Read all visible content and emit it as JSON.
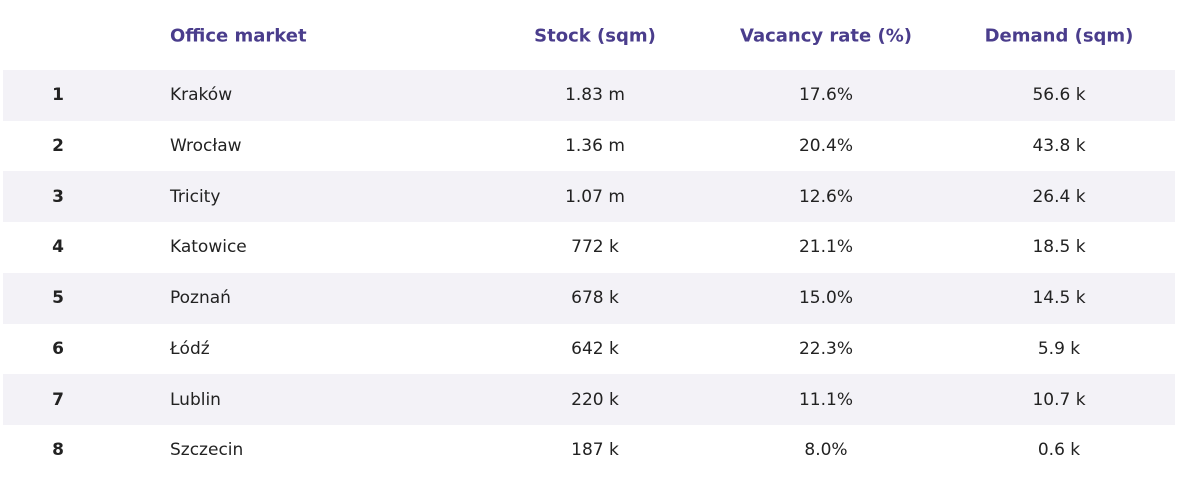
{
  "table": {
    "header": [
      "Office market",
      "Stock (sqm)",
      "Vacancy rate (%)",
      "Demand (sqm)"
    ],
    "rows": [
      [
        "1",
        "Kraków",
        "1.83 m",
        "17.6%",
        "56.6 k"
      ],
      [
        "2",
        "Wrocław",
        "1.36 m",
        "20.4%",
        "43.8 k"
      ],
      [
        "3",
        "Tricity",
        "1.07 m",
        "12.6%",
        "26.4 k"
      ],
      [
        "4",
        "Katowice",
        "772 k",
        "21.1%",
        "18.5 k"
      ],
      [
        "5",
        "Poznań",
        "678 k",
        "15.0%",
        "14.5 k"
      ],
      [
        "6",
        "Łódź",
        "642 k",
        "22.3%",
        "5.9 k"
      ],
      [
        "7",
        "Lublin",
        "220 k",
        "11.1%",
        "10.7 k"
      ],
      [
        "8",
        "Szczecin",
        "187 k",
        "8.0%",
        "0.6 k"
      ]
    ]
  }
}
